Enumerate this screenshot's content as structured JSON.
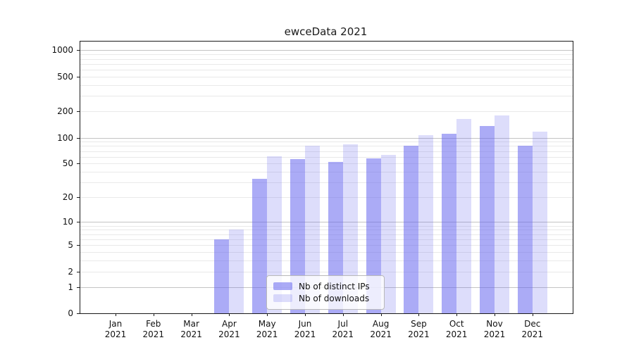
{
  "title": "ewceData 2021",
  "chart_data": {
    "type": "bar",
    "title": "ewceData 2021",
    "categories": [
      "Jan 2021",
      "Feb 2021",
      "Mar 2021",
      "Apr 2021",
      "May 2021",
      "Jun 2021",
      "Jul 2021",
      "Aug 2021",
      "Sep 2021",
      "Oct 2021",
      "Nov 2021",
      "Dec 2021"
    ],
    "series": [
      {
        "name": "Nb of distinct IPs",
        "color": "rgba(102,102,238,0.55)",
        "values": [
          0,
          0,
          0,
          6,
          33,
          56,
          52,
          58,
          81,
          110,
          136,
          81
        ]
      },
      {
        "name": "Nb of downloads",
        "color": "rgba(102,102,238,0.22)",
        "values": [
          0,
          0,
          0,
          8,
          61,
          80,
          84,
          63,
          107,
          163,
          180,
          118
        ]
      }
    ],
    "y_ticks": [
      0,
      1,
      2,
      5,
      10,
      20,
      50,
      100,
      200,
      500,
      1000
    ],
    "y_scale": "log10(value+1)",
    "ylim": [
      0,
      1250
    ],
    "xlabel": "",
    "ylabel": "",
    "grid": true,
    "legend_position": "bottom-center",
    "background": "#ffffff",
    "major_grid_color": "#c3c3c3",
    "minor_grid_color": "#e9e9e9"
  }
}
